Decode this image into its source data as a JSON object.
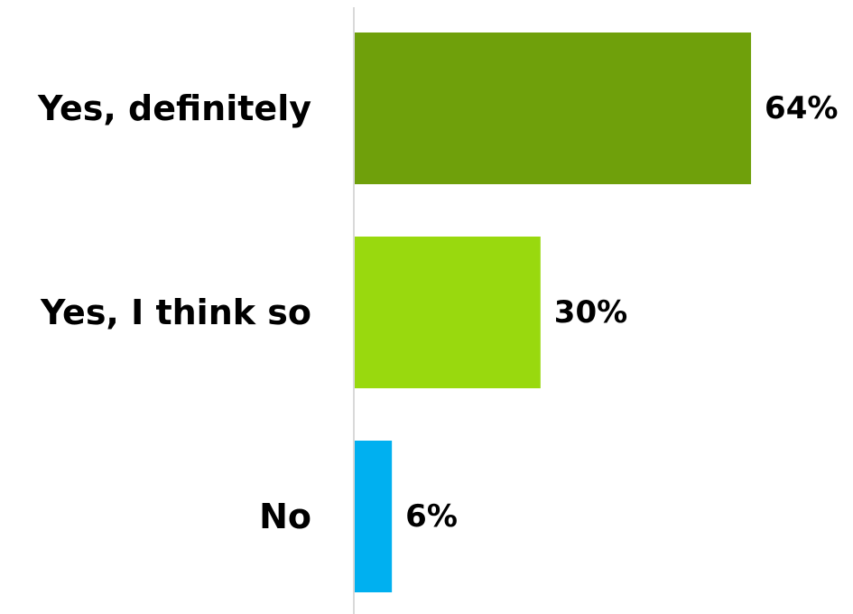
{
  "chart_data": {
    "type": "bar",
    "orientation": "horizontal",
    "categories": [
      "Yes, definitely",
      "Yes, I think so",
      "No"
    ],
    "values": [
      64,
      30,
      6
    ],
    "data_labels": [
      "64%",
      "30%",
      "6%"
    ],
    "colors": [
      "#6fa00b",
      "#99d90e",
      "#00b0f0"
    ],
    "unit": "%",
    "xlim": [
      0,
      100
    ],
    "grid": false,
    "legend": "none",
    "title": "",
    "xlabel": "",
    "ylabel": ""
  }
}
